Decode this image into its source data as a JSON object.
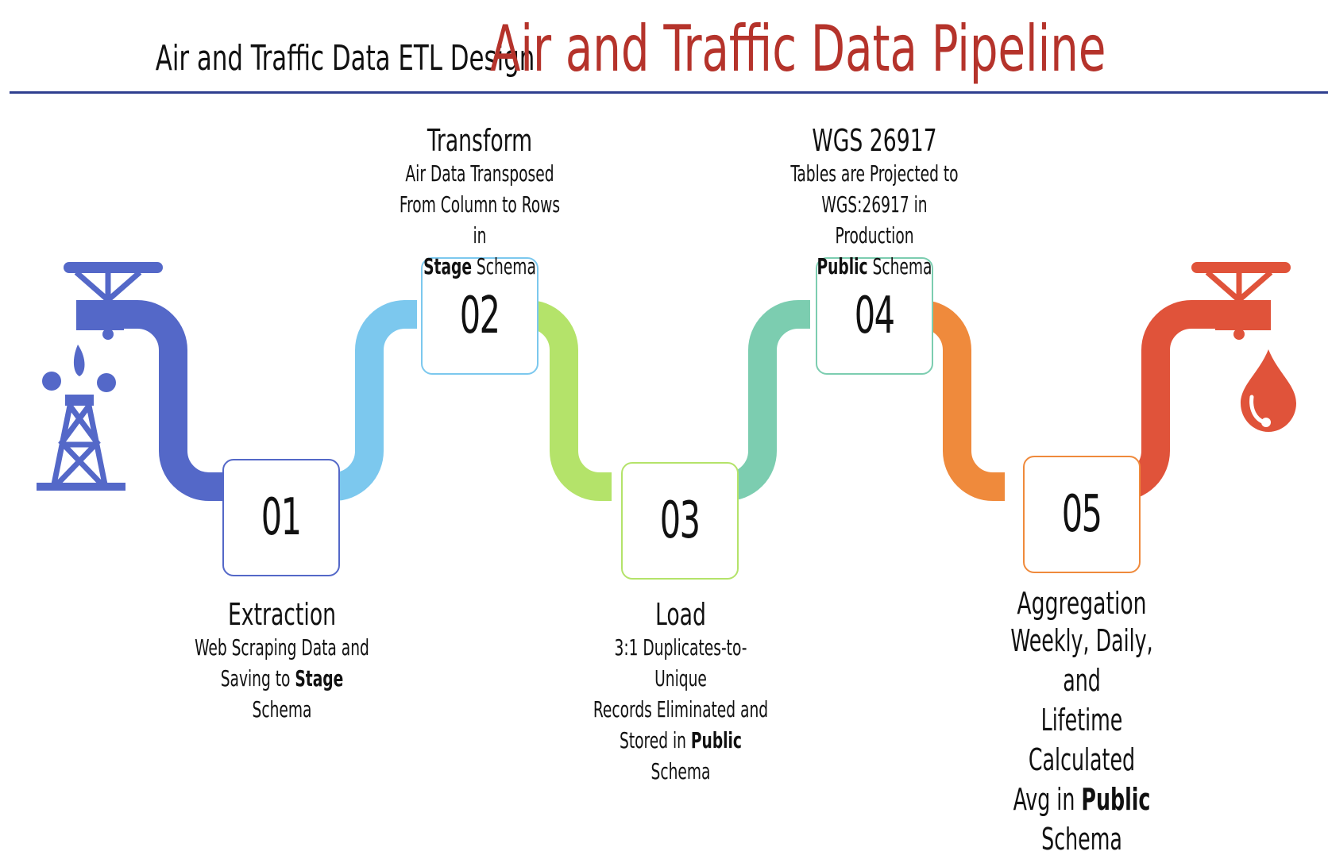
{
  "header": {
    "subtitle": "Air and Traffic Data ETL Design",
    "title": "Air and Traffic Data Pipeline"
  },
  "colors": {
    "title": "#b5332b",
    "rule": "#2f3f8f",
    "pipe1": "#5468c8",
    "pipe2": "#7cc8ee",
    "pipe3": "#b4e36a",
    "pipe4": "#7ccdb0",
    "pipe5": "#ef8a3c",
    "pipe6": "#e0533a"
  },
  "icons": {
    "start": "oil-derrick-with-tap-icon",
    "end": "tap-with-droplet-icon"
  },
  "steps": [
    {
      "number": "01",
      "title": "Extraction",
      "desc_lines": [
        [
          "Web Scraping Data and"
        ],
        [
          "Saving to ",
          "Stage",
          " Schema"
        ]
      ]
    },
    {
      "number": "02",
      "title": "Transform",
      "desc_lines": [
        [
          "Air Data Transposed"
        ],
        [
          "From Column to Rows in"
        ],
        [
          "",
          "Stage",
          " Schema"
        ]
      ]
    },
    {
      "number": "03",
      "title": "Load",
      "desc_lines": [
        [
          "3:1 Duplicates-to-Unique"
        ],
        [
          "Records Eliminated and"
        ],
        [
          "Stored in ",
          "Public",
          " Schema"
        ]
      ]
    },
    {
      "number": "04",
      "title": "WGS 26917",
      "desc_lines": [
        [
          "Tables are Projected to"
        ],
        [
          "WGS:26917 in Production"
        ],
        [
          "",
          "Public",
          " Schema"
        ]
      ]
    },
    {
      "number": "05",
      "title": "Aggregation",
      "desc_lines": [
        [
          "Weekly, Daily, and"
        ],
        [
          "Lifetime Calculated"
        ],
        [
          "Avg in ",
          "Public",
          " Schema"
        ]
      ]
    }
  ]
}
